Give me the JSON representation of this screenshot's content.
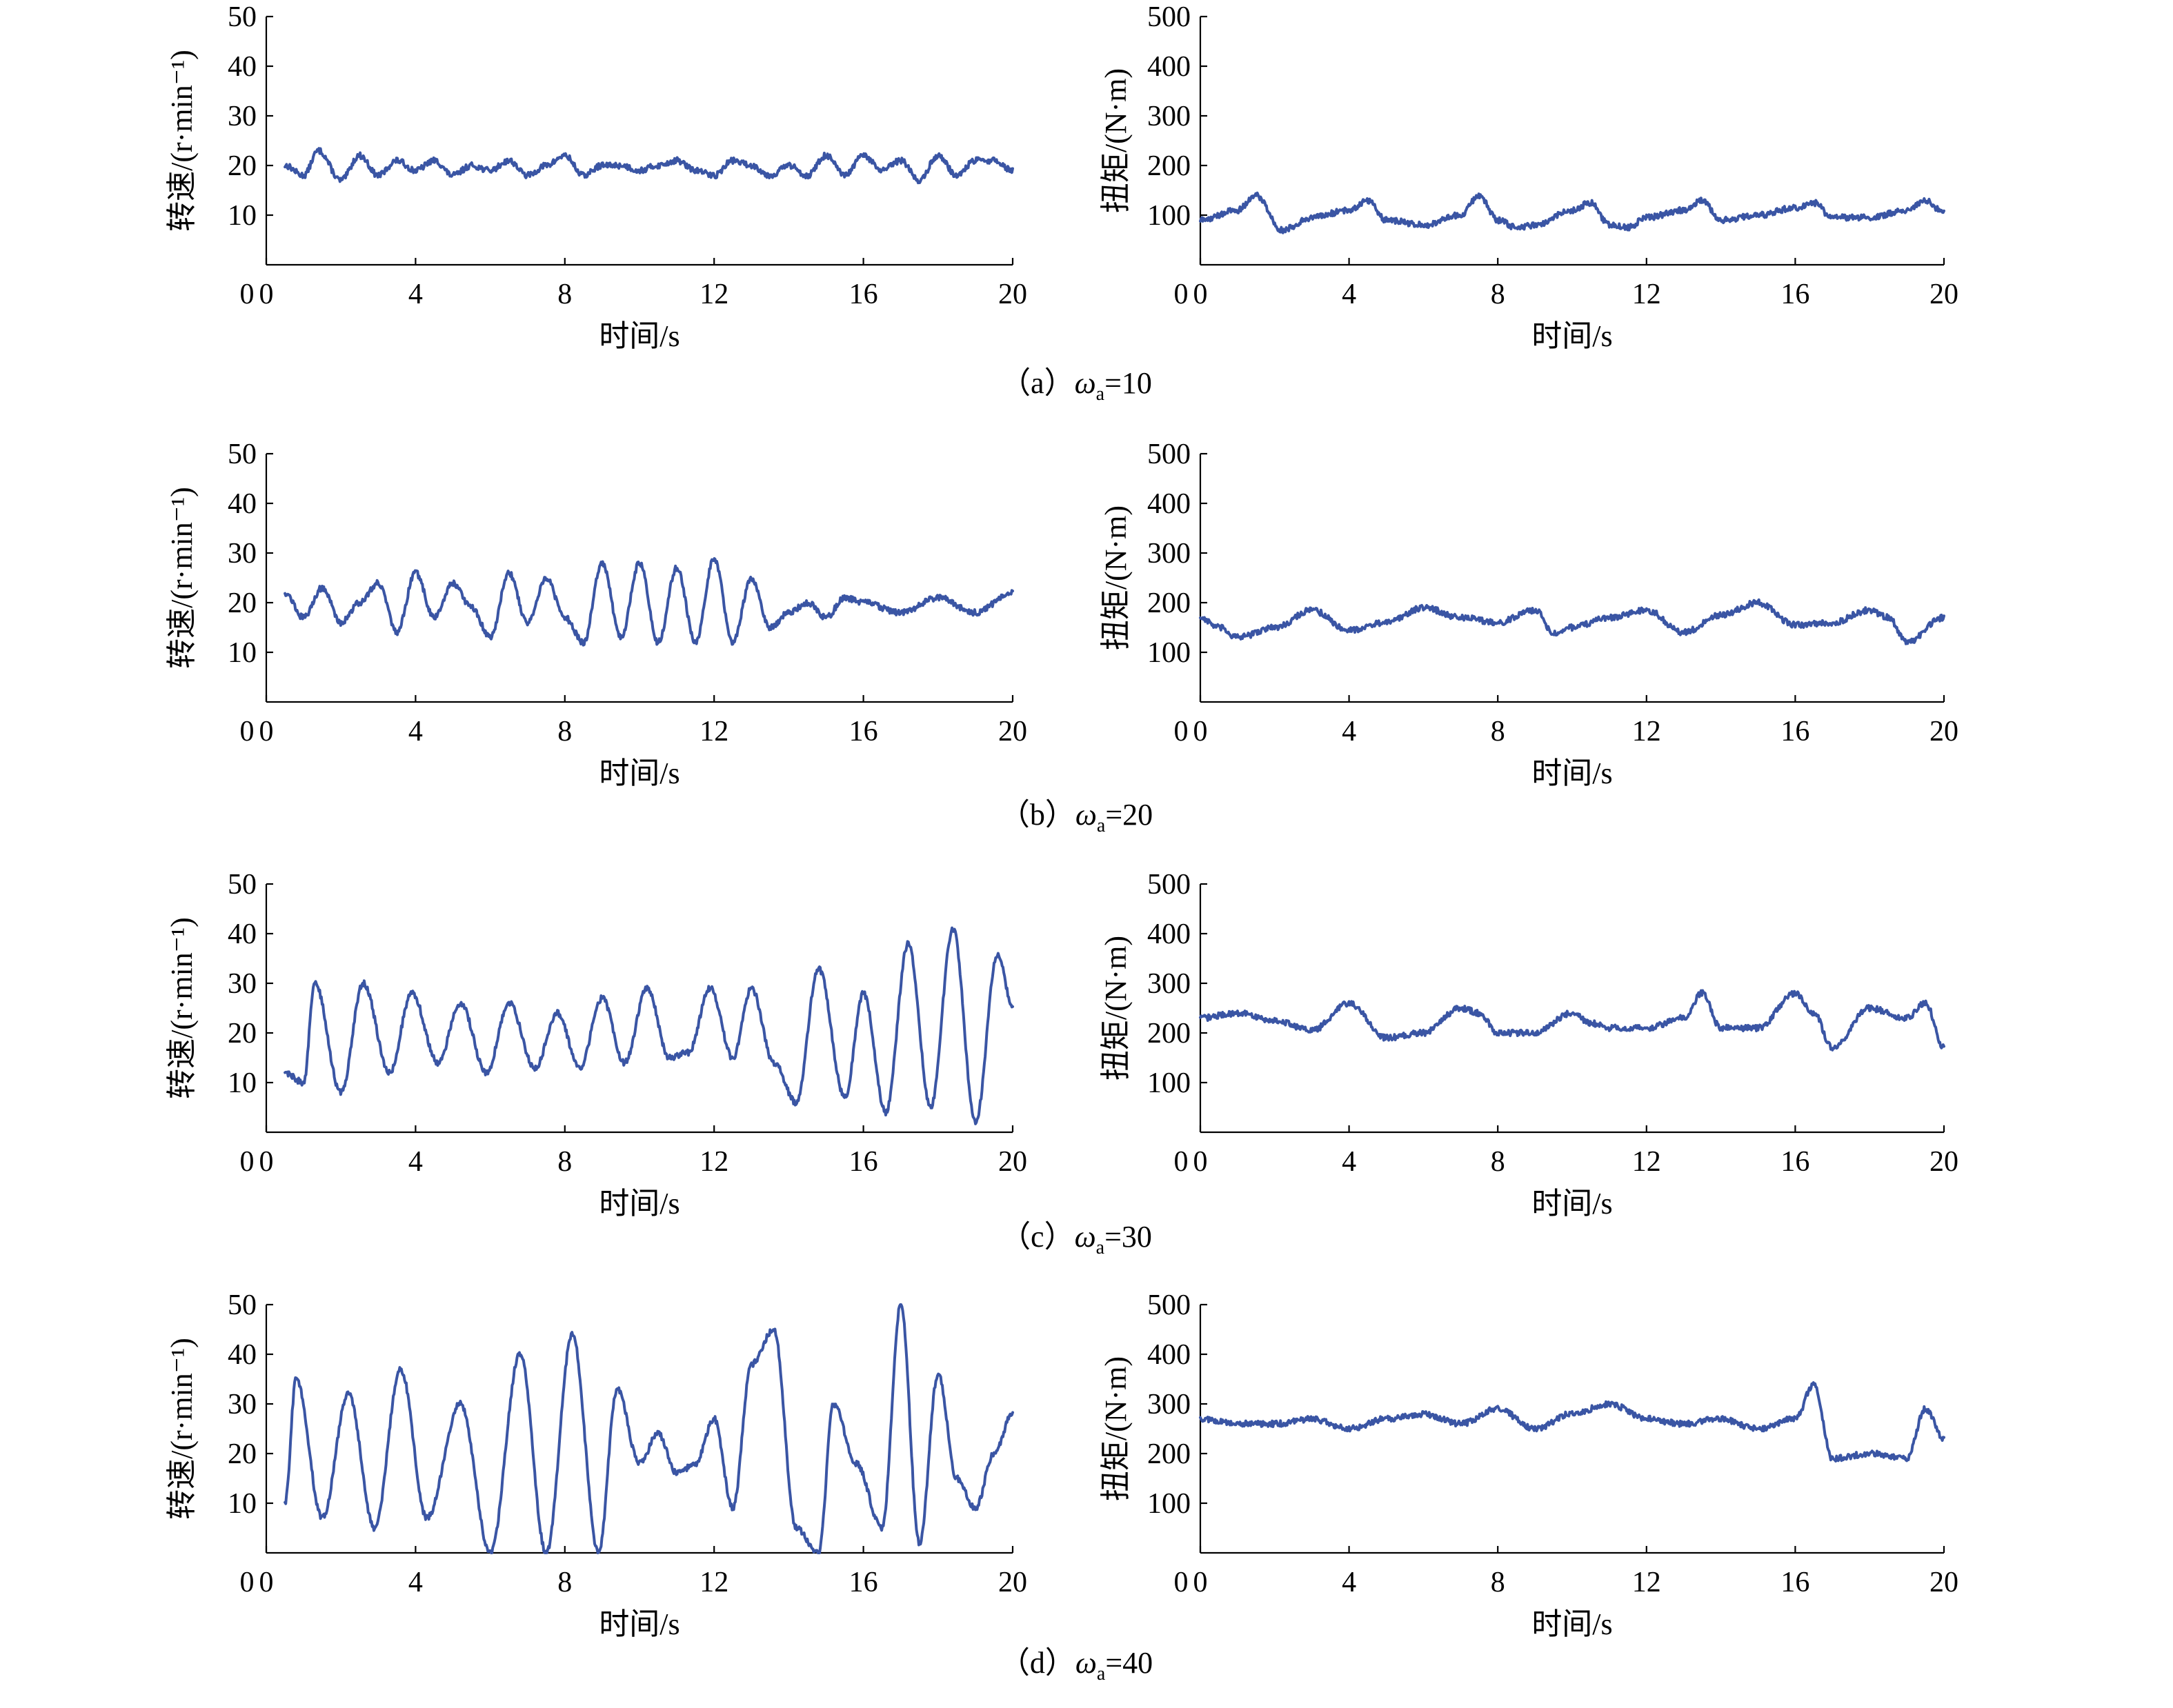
{
  "colors": {
    "series": "#3a55a4",
    "axis": "#000000"
  },
  "chart_data": [
    {
      "type": "line",
      "panel": "a",
      "quantity": "speed",
      "ylabel": "转速/(r·min⁻¹)",
      "xlabel": "时间/s",
      "xlim": [
        0,
        20
      ],
      "ylim": [
        0,
        50
      ],
      "xticks": [
        "0",
        "4",
        "8",
        "12",
        "16",
        "20"
      ],
      "yticks": [
        "10",
        "20",
        "30",
        "40",
        "50"
      ],
      "x": [
        0.5,
        1,
        1.4,
        2,
        2.5,
        3,
        3.5,
        4,
        4.5,
        5,
        5.5,
        6,
        6.5,
        7,
        7.5,
        8,
        8.5,
        9,
        9.5,
        10,
        10.5,
        11,
        11.5,
        12,
        12.5,
        13,
        13.5,
        14,
        14.5,
        15,
        15.5,
        16,
        16.5,
        17,
        17.5,
        18,
        18.5,
        19,
        19.5,
        20
      ],
      "values": [
        20,
        18,
        23,
        17,
        22,
        18,
        21,
        19,
        21,
        18,
        20,
        19,
        21,
        18,
        20,
        22,
        18,
        20,
        20,
        19,
        20,
        21,
        19,
        18,
        21,
        20,
        18,
        20,
        18,
        22,
        18,
        22,
        19,
        21,
        17,
        22,
        18,
        21,
        21,
        19
      ]
    },
    {
      "type": "line",
      "panel": "a",
      "quantity": "torque",
      "ylabel": "扭矩/(N·m)",
      "xlabel": "时间/s",
      "xlim": [
        0,
        20
      ],
      "ylim": [
        0,
        500
      ],
      "xticks": [
        "0",
        "4",
        "8",
        "12",
        "16",
        "20"
      ],
      "yticks": [
        "100",
        "200",
        "300",
        "400",
        "500"
      ],
      "x": [
        0,
        1,
        1.5,
        2.2,
        3,
        4,
        4.5,
        5,
        6,
        7,
        7.5,
        8,
        8.5,
        9,
        10,
        10.5,
        11,
        11.5,
        12,
        13,
        13.5,
        14,
        15,
        16,
        16.5,
        17,
        18,
        19,
        19.5,
        20
      ],
      "values": [
        90,
        110,
        140,
        70,
        95,
        110,
        130,
        90,
        80,
        100,
        140,
        90,
        75,
        80,
        110,
        125,
        80,
        75,
        95,
        110,
        130,
        90,
        100,
        115,
        125,
        95,
        95,
        110,
        130,
        105
      ]
    },
    {
      "type": "line",
      "panel": "b",
      "quantity": "speed",
      "ylabel": "转速/(r·min⁻¹)",
      "xlabel": "时间/s",
      "xlim": [
        0,
        20
      ],
      "ylim": [
        0,
        50
      ],
      "xticks": [
        "0",
        "4",
        "8",
        "12",
        "16",
        "20"
      ],
      "yticks": [
        "10",
        "20",
        "30",
        "40",
        "50"
      ],
      "x": [
        0.5,
        1,
        1.5,
        2,
        2.5,
        3,
        3.5,
        4,
        4.5,
        5,
        5.5,
        6,
        6.5,
        7,
        7.5,
        8,
        8.5,
        9,
        9.5,
        10,
        10.5,
        11,
        11.5,
        12,
        12.5,
        13,
        13.5,
        14,
        14.5,
        15,
        15.5,
        16,
        17,
        18,
        19,
        20
      ],
      "values": [
        22,
        17,
        23,
        16,
        20,
        24,
        14,
        26,
        17,
        24,
        19,
        13,
        26,
        16,
        25,
        17,
        12,
        28,
        13,
        28,
        12,
        27,
        12,
        29,
        12,
        25,
        15,
        18,
        20,
        17,
        21,
        20,
        18,
        21,
        18,
        22
      ]
    },
    {
      "type": "line",
      "panel": "b",
      "quantity": "torque",
      "ylabel": "扭矩/(N·m)",
      "xlabel": "时间/s",
      "xlim": [
        0,
        20
      ],
      "ylim": [
        0,
        500
      ],
      "xticks": [
        "0",
        "4",
        "8",
        "12",
        "16",
        "20"
      ],
      "yticks": [
        "100",
        "200",
        "300",
        "400",
        "500"
      ],
      "x": [
        0,
        0.5,
        1,
        2,
        3,
        4,
        5,
        6,
        7,
        8,
        9,
        9.5,
        10,
        11,
        12,
        13,
        14,
        15,
        16,
        17,
        18,
        18.5,
        19,
        20
      ],
      "values": [
        170,
        150,
        130,
        150,
        185,
        145,
        160,
        190,
        170,
        160,
        185,
        140,
        150,
        170,
        185,
        140,
        175,
        200,
        155,
        160,
        185,
        170,
        120,
        170
      ]
    },
    {
      "type": "line",
      "panel": "c",
      "quantity": "speed",
      "ylabel": "转速/(r·min⁻¹)",
      "xlabel": "时间/s",
      "xlim": [
        0,
        20
      ],
      "ylim": [
        0,
        50
      ],
      "xticks": [
        "0",
        "4",
        "8",
        "12",
        "16",
        "20"
      ],
      "yticks": [
        "10",
        "20",
        "30",
        "40",
        "50"
      ],
      "x": [
        0.5,
        1,
        1.3,
        2,
        2.6,
        3.3,
        3.9,
        4.6,
        5.2,
        5.9,
        6.5,
        7.2,
        7.8,
        8.4,
        9,
        9.6,
        10.2,
        10.8,
        11.3,
        11.9,
        12.5,
        13,
        13.6,
        14.2,
        14.8,
        15.5,
        16,
        16.6,
        17.2,
        17.8,
        18.4,
        19,
        19.6,
        20
      ],
      "values": [
        12,
        10,
        30,
        8,
        30,
        12,
        28,
        14,
        26,
        12,
        26,
        13,
        24,
        13,
        27,
        14,
        29,
        15,
        16,
        29,
        15,
        29,
        14,
        6,
        33,
        7,
        28,
        4,
        38,
        5,
        41,
        2,
        36,
        25
      ]
    },
    {
      "type": "line",
      "panel": "c",
      "quantity": "torque",
      "ylabel": "扭矩/(N·m)",
      "xlabel": "时间/s",
      "xlim": [
        0,
        20
      ],
      "ylim": [
        0,
        500
      ],
      "xticks": [
        "0",
        "4",
        "8",
        "12",
        "16",
        "20"
      ],
      "yticks": [
        "100",
        "200",
        "300",
        "400",
        "500"
      ],
      "x": [
        0,
        1,
        2,
        3,
        4,
        5,
        6,
        7,
        7.5,
        8,
        9,
        10,
        10.5,
        11,
        12,
        13,
        13.5,
        14,
        15,
        16,
        16.5,
        17,
        18,
        19,
        19.5,
        20
      ],
      "values": [
        230,
        240,
        225,
        205,
        260,
        190,
        200,
        250,
        240,
        200,
        200,
        240,
        220,
        210,
        210,
        230,
        280,
        210,
        210,
        280,
        240,
        170,
        250,
        230,
        260,
        170
      ]
    },
    {
      "type": "line",
      "panel": "d",
      "quantity": "speed",
      "ylabel": "转速/(r·min⁻¹)",
      "xlabel": "时间/s",
      "xlim": [
        0,
        20
      ],
      "ylim": [
        0,
        50
      ],
      "xticks": [
        "0",
        "4",
        "8",
        "12",
        "16",
        "20"
      ],
      "yticks": [
        "10",
        "20",
        "30",
        "40",
        "50"
      ],
      "x": [
        0.5,
        0.8,
        1.5,
        2.2,
        2.9,
        3.6,
        4.3,
        5.2,
        6,
        6.8,
        7.5,
        8.2,
        8.9,
        9.4,
        10,
        10.5,
        11,
        11.5,
        12,
        12.5,
        13,
        13.6,
        14.2,
        14.8,
        15.2,
        15.8,
        16.5,
        17,
        17.5,
        18,
        18.5,
        19,
        19.5,
        20
      ],
      "values": [
        10,
        35,
        7,
        32,
        5,
        37,
        7,
        30,
        0,
        40,
        0,
        44,
        0,
        33,
        18,
        24,
        16,
        18,
        27,
        9,
        38,
        45,
        5,
        0,
        30,
        18,
        5,
        50,
        2,
        36,
        15,
        9,
        20,
        28
      ]
    },
    {
      "type": "line",
      "panel": "d",
      "quantity": "torque",
      "ylabel": "扭矩/(N·m)",
      "xlabel": "时间/s",
      "xlim": [
        0,
        20
      ],
      "ylim": [
        0,
        500
      ],
      "xticks": [
        "0",
        "4",
        "8",
        "12",
        "16",
        "20"
      ],
      "yticks": [
        "100",
        "200",
        "300",
        "400",
        "500"
      ],
      "x": [
        0,
        1,
        2,
        3,
        4,
        5,
        6,
        7,
        8,
        9,
        10,
        11,
        12,
        13,
        14,
        15,
        16,
        16.5,
        17,
        18,
        19,
        19.5,
        20
      ],
      "values": [
        270,
        260,
        260,
        270,
        250,
        270,
        280,
        260,
        290,
        250,
        280,
        300,
        270,
        260,
        270,
        250,
        270,
        340,
        190,
        200,
        190,
        290,
        230
      ]
    }
  ],
  "captions": [
    {
      "prefix": "（a）",
      "symbol": "ω",
      "sub": "a",
      "suffix": "=10"
    },
    {
      "prefix": "（b）",
      "symbol": "ω",
      "sub": "a",
      "suffix": "=20"
    },
    {
      "prefix": "（c）",
      "symbol": "ω",
      "sub": "a",
      "suffix": "=30"
    },
    {
      "prefix": "（d）",
      "symbol": "ω",
      "sub": "a",
      "suffix": "=40"
    }
  ]
}
